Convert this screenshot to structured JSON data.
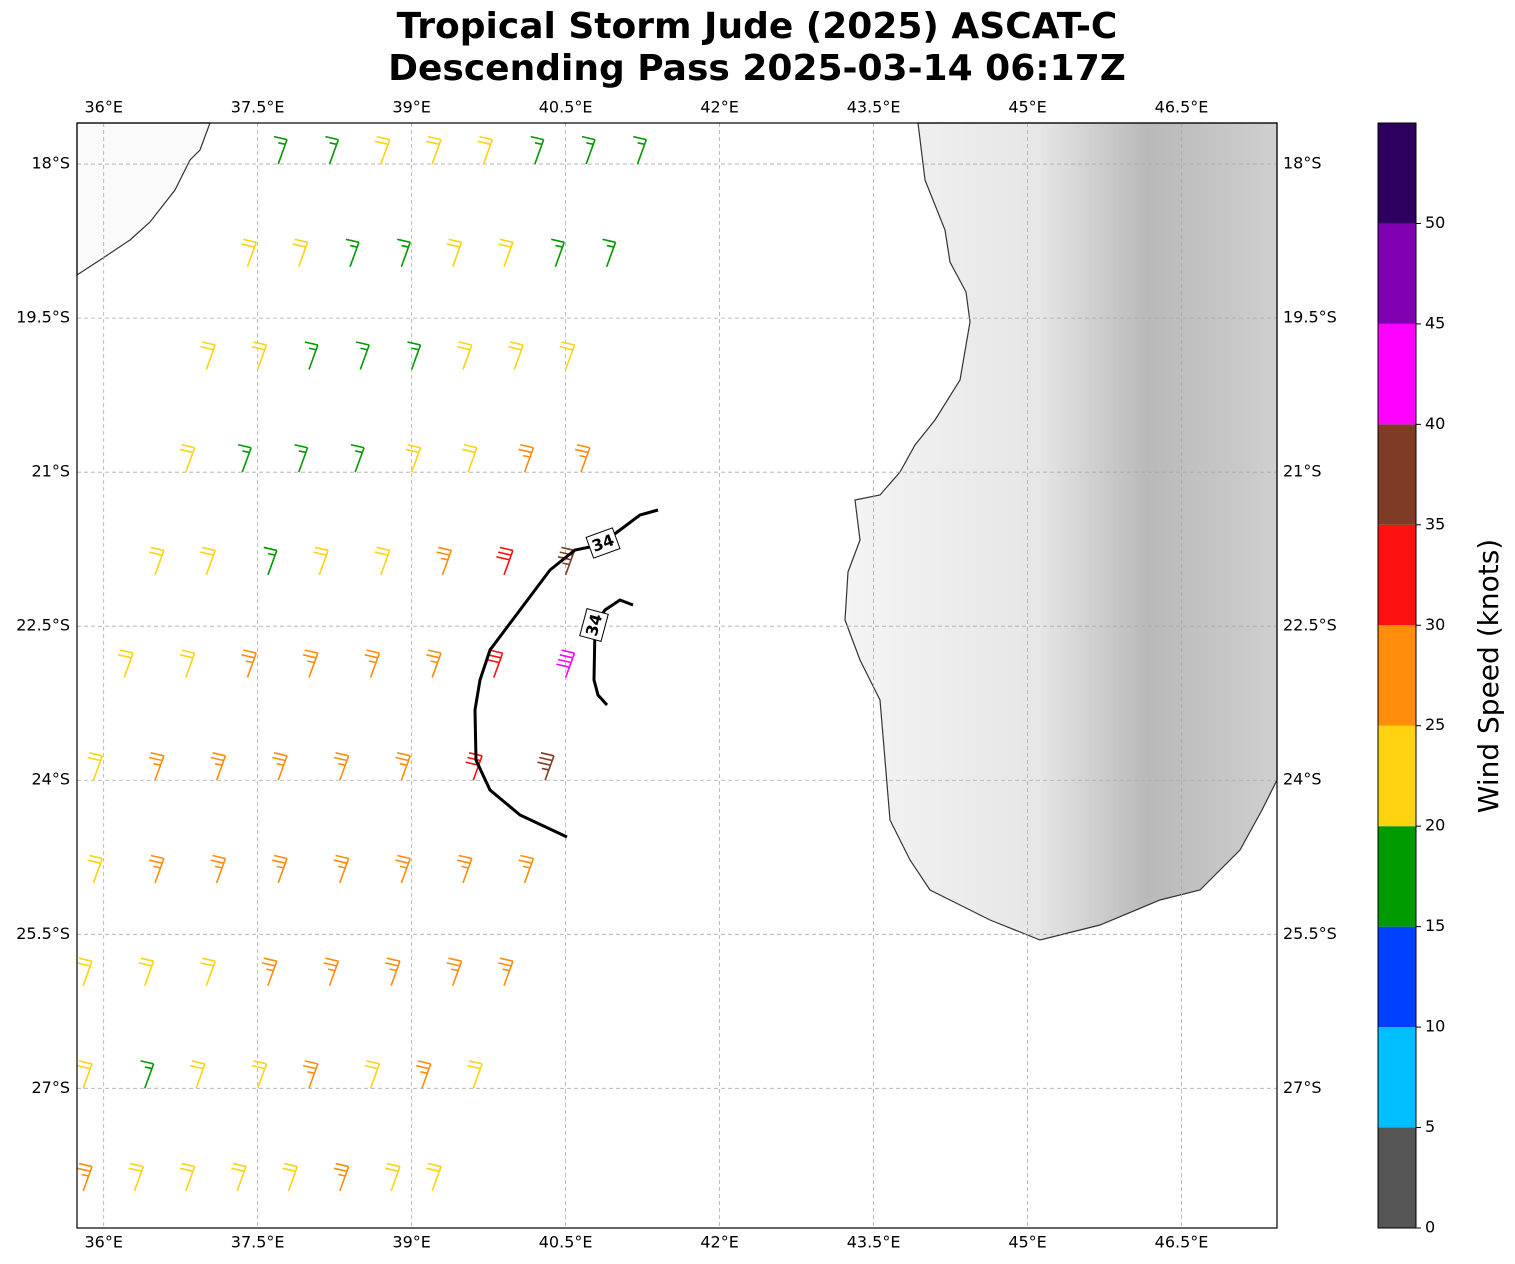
{
  "chart_data": {
    "type": "barbs",
    "title": "Tropical Storm Jude (2025) ASCAT-C",
    "subtitle": "Descending Pass 2025-03-14 06:17Z",
    "xlim": [
      35.74,
      47.43
    ],
    "ylim": [
      -28.36,
      -17.6
    ],
    "grid": true,
    "xticks": [
      {
        "value": 36,
        "label": "36°E"
      },
      {
        "value": 37.5,
        "label": "37.5°E"
      },
      {
        "value": 39,
        "label": "39°E"
      },
      {
        "value": 40.5,
        "label": "40.5°E"
      },
      {
        "value": 42,
        "label": "42°E"
      },
      {
        "value": 43.5,
        "label": "43.5°E"
      },
      {
        "value": 45,
        "label": "45°E"
      },
      {
        "value": 46.5,
        "label": "46.5°E"
      }
    ],
    "yticks": [
      {
        "value": -18,
        "label": "18°S"
      },
      {
        "value": -19.5,
        "label": "19.5°S"
      },
      {
        "value": -21,
        "label": "21°S"
      },
      {
        "value": -22.5,
        "label": "22.5°S"
      },
      {
        "value": -24,
        "label": "24°S"
      },
      {
        "value": -25.5,
        "label": "25.5°S"
      },
      {
        "value": -27,
        "label": "27°S"
      }
    ],
    "barbs": {
      "lat": [
        -18,
        -18,
        -18,
        -18,
        -18,
        -18,
        -18,
        -18,
        -19,
        -19,
        -19,
        -19,
        -19,
        -19,
        -19,
        -19,
        -20,
        -20,
        -20,
        -20,
        -20,
        -20,
        -20,
        -20,
        -21,
        -21,
        -21,
        -21,
        -21,
        -21,
        -21,
        -21,
        -22,
        -22,
        -22,
        -22,
        -22,
        -22,
        -22,
        -22,
        -23,
        -23,
        -23,
        -23,
        -23,
        -23,
        -23,
        -23,
        -24,
        -24,
        -24,
        -24,
        -24,
        -24,
        -24,
        -24,
        -25,
        -25,
        -25,
        -25,
        -25,
        -25,
        -25,
        -25,
        -26,
        -26,
        -26,
        -26,
        -26,
        -26,
        -26,
        -26,
        -27,
        -27,
        -27,
        -27,
        -27,
        -27,
        -27,
        -27,
        -28,
        -28,
        -28,
        -28,
        -28,
        -28,
        -28,
        -28
      ],
      "lon": [
        37.7,
        38.2,
        38.7,
        39.2,
        39.7,
        40.2,
        40.7,
        41.2,
        37.4,
        37.9,
        38.4,
        38.9,
        39.4,
        39.9,
        40.4,
        40.9,
        37.0,
        37.5,
        38.0,
        38.5,
        39.0,
        39.5,
        40.0,
        40.5,
        36.8,
        37.35,
        37.9,
        38.45,
        39.0,
        39.55,
        40.1,
        40.65,
        36.5,
        37.0,
        37.6,
        38.1,
        38.7,
        39.3,
        39.9,
        40.5,
        36.2,
        36.8,
        37.4,
        38.0,
        38.6,
        39.2,
        39.8,
        40.5,
        35.9,
        36.5,
        37.1,
        37.7,
        38.3,
        38.9,
        39.6,
        40.3,
        35.9,
        36.5,
        37.1,
        37.7,
        38.3,
        38.9,
        39.5,
        40.1,
        35.8,
        36.4,
        37.0,
        37.6,
        38.2,
        38.8,
        39.4,
        39.9,
        35.8,
        36.4,
        36.9,
        37.5,
        38.0,
        38.6,
        39.1,
        39.6,
        35.8,
        36.3,
        36.8,
        37.3,
        37.8,
        38.3,
        38.8,
        39.2
      ],
      "speed": [
        18,
        18,
        22,
        22,
        22,
        18,
        18,
        17,
        22,
        22,
        18,
        18,
        22,
        22,
        18,
        18,
        22,
        22,
        18,
        18,
        18,
        22,
        22,
        23,
        22,
        18,
        18,
        18,
        22,
        22,
        27,
        28,
        22,
        22,
        18,
        22,
        22,
        27,
        32,
        38,
        22,
        23,
        27,
        27,
        27,
        27,
        33,
        42,
        22,
        27,
        27,
        27,
        27,
        28,
        33,
        38,
        22,
        27,
        27,
        27,
        28,
        27,
        28,
        28,
        22,
        22,
        23,
        27,
        27,
        27,
        28,
        27,
        22,
        18,
        22,
        22,
        27,
        22,
        27,
        22,
        27,
        22,
        22,
        23,
        22,
        27,
        22,
        22
      ]
    },
    "contour": {
      "level": 34
    },
    "colorbar": {
      "label": "Wind Speed (knots)",
      "bins": [
        0,
        5,
        10,
        15,
        20,
        25,
        30,
        35,
        40,
        45,
        50,
        55
      ],
      "colors": [
        "#555555",
        "#00bfff",
        "#0040ff",
        "#009900",
        "#ffd30f",
        "#ff8c0a",
        "#ff1010",
        "#7f3b26",
        "#ff00ff",
        "#8000b3",
        "#2d0060"
      ],
      "ticks": [
        0,
        5,
        10,
        15,
        20,
        25,
        30,
        35,
        40,
        45,
        50
      ]
    }
  }
}
